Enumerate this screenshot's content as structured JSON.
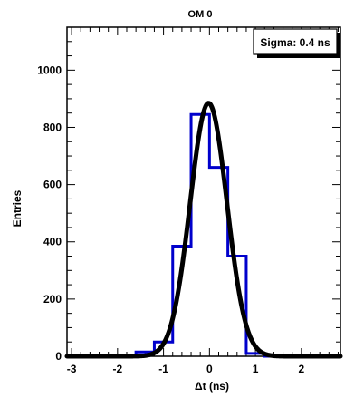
{
  "chart_data": {
    "type": "histogram",
    "title": "OM 0",
    "xlabel": "Δt (ns)",
    "ylabel": "Entries",
    "xlim": [
      -3.1,
      2.85
    ],
    "ylim": [
      0,
      1150
    ],
    "x_ticks": [
      -3,
      -2,
      -1,
      0,
      1,
      2
    ],
    "y_ticks": [
      0,
      200,
      400,
      600,
      800,
      1000
    ],
    "stats_box": "Sigma: 0.4 ns",
    "histogram": {
      "color": "#0000cc",
      "bin_edges": [
        -3.1,
        -1.6,
        -1.2,
        -0.8,
        -0.4,
        0.0,
        0.4,
        0.8,
        1.2,
        2.85
      ],
      "counts": [
        0,
        15,
        50,
        385,
        845,
        660,
        350,
        10,
        0
      ]
    },
    "fit": {
      "type": "gaussian",
      "color": "#000000",
      "amplitude": 885,
      "mean": -0.02,
      "sigma": 0.4
    }
  }
}
